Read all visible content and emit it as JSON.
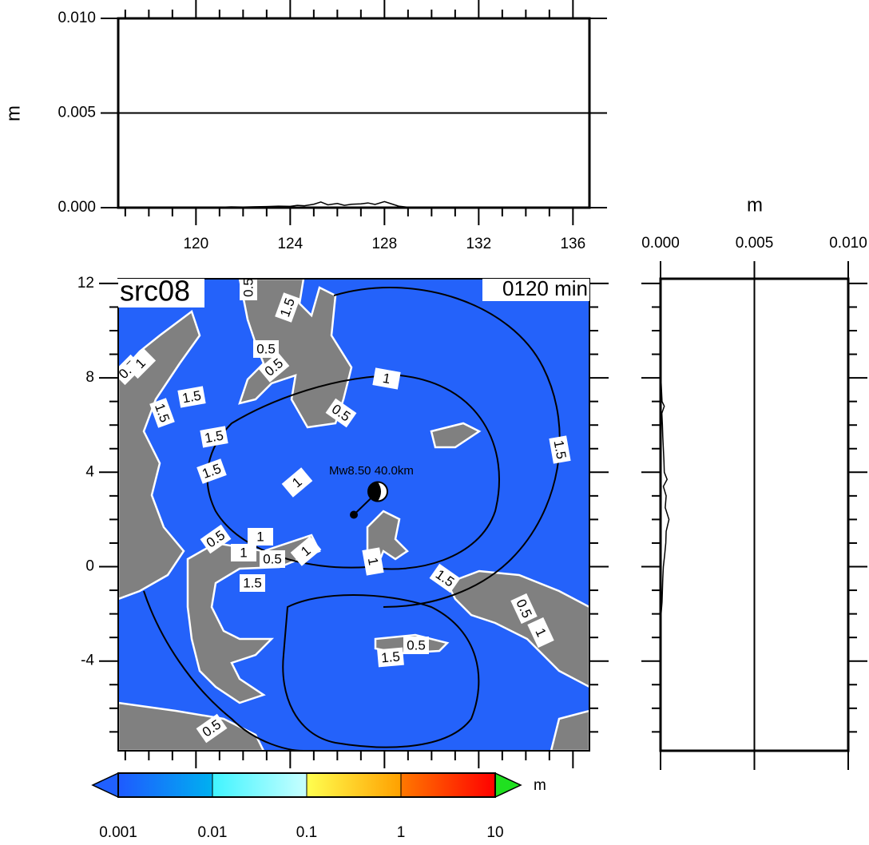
{
  "chart_data": [
    {
      "type": "line",
      "ylabel": "m",
      "xlim": [
        116.7,
        136.7
      ],
      "xticks": [
        120,
        124,
        128,
        132,
        136
      ],
      "xminorticks": [
        117,
        118,
        119,
        121,
        122,
        123,
        125,
        126,
        127,
        129,
        130,
        131,
        133,
        134,
        135
      ],
      "ylim": [
        0,
        0.01
      ],
      "yticks": [
        {
          "value": 0,
          "label": "0.000"
        },
        {
          "value": 0.005,
          "label": "0.005"
        },
        {
          "value": 0.01,
          "label": "0.010"
        }
      ],
      "grid": true,
      "series": [
        {
          "color": "#000000",
          "x": [
            117.5,
            118,
            118.5,
            119,
            119.5,
            120,
            120.5,
            121,
            121.5,
            122,
            122.5,
            123,
            123.5,
            124,
            124.3,
            124.6,
            125,
            125.3,
            125.6,
            126,
            126.3,
            126.6,
            127,
            127.3,
            127.6,
            128,
            128.3,
            128.6,
            129
          ],
          "values": [
            1e-05,
            2e-05,
            1e-05,
            3e-05,
            2e-05,
            2e-05,
            3e-05,
            2e-05,
            4e-05,
            3e-05,
            5e-05,
            6e-05,
            8e-05,
            7e-05,
            0.00012,
            0.0001,
            0.00018,
            0.0003,
            0.00015,
            0.00022,
            0.00012,
            0.00018,
            0.0002,
            0.00025,
            0.00017,
            0.00032,
            0.0002,
            8e-05,
            2e-05
          ]
        }
      ]
    },
    {
      "type": "map",
      "title": "src08",
      "subtitle": "0120 min",
      "xlim": [
        116.7,
        136.7
      ],
      "xminorticks": [
        117,
        118,
        119,
        120,
        121,
        122,
        123,
        124,
        125,
        126,
        127,
        128,
        129,
        130,
        131,
        132,
        133,
        134,
        135,
        136
      ],
      "ylim": [
        -7.8,
        12.2
      ],
      "yticks": [
        12,
        8,
        4,
        0,
        -4
      ],
      "yminorticks": [
        11,
        10,
        9,
        7,
        6,
        5,
        3,
        2,
        1,
        -1,
        -2,
        -3,
        -5,
        -6,
        -7
      ],
      "sea_color": "#2462fa",
      "land_color": "#808080",
      "annotation": "Mw8.50 40.0km",
      "epicenter": [
        126.7,
        2.2
      ],
      "contour_labels": [
        "0.5",
        "1.5",
        "0.5",
        "0.5",
        "0.5",
        "1",
        "1.5",
        "1.5",
        "0.5",
        "1",
        "1.5",
        "1.5",
        "1",
        "1.5",
        "0.5",
        "1",
        "1",
        "0.5",
        "1",
        "1",
        "1.5",
        "1.5",
        "0.5",
        "1",
        "1.5",
        "0.5",
        "0.5"
      ],
      "colorbar": {
        "unit": "m",
        "log": true,
        "ticks": [
          0.001,
          0.01,
          0.1,
          1,
          10
        ],
        "colors": [
          [
            "#1e5aff",
            "#00b0f0"
          ],
          [
            "#40f4ff",
            "#c8ffff"
          ],
          [
            "#ffff50",
            "#ffa000"
          ],
          [
            "#ff7800",
            "#ff0000"
          ]
        ],
        "under_color": "#2060ff",
        "over_color": "#20e020"
      }
    },
    {
      "type": "line",
      "orientation": "horizontal",
      "xlabel": "m",
      "xlim": [
        0,
        0.01
      ],
      "xticks": [
        {
          "value": 0,
          "label": "0.000"
        },
        {
          "value": 0.005,
          "label": "0.005"
        },
        {
          "value": 0.01,
          "label": "0.010"
        }
      ],
      "ylim": [
        -7.8,
        12.2
      ],
      "yticks": [
        12,
        11,
        10,
        9,
        8,
        7,
        6,
        5,
        4,
        3,
        2,
        1,
        0,
        -1,
        -2,
        -3,
        -4,
        -5,
        -6,
        -7
      ],
      "grid": true,
      "series": [
        {
          "color": "#000000",
          "y": [
            8,
            7.5,
            7,
            6.8,
            6.5,
            6,
            5.5,
            5,
            4.5,
            4,
            3.7,
            3.4,
            3,
            2.5,
            2,
            1.5,
            1,
            0.5,
            0,
            -0.5,
            -1,
            -1.5,
            -2
          ],
          "values": [
            2e-05,
            5e-05,
            8e-05,
            0.0002,
            7e-05,
            0.0001,
            0.00012,
            0.00015,
            0.00018,
            0.0002,
            0.00035,
            0.00015,
            0.0003,
            0.00025,
            0.00045,
            0.0003,
            0.00028,
            0.00022,
            0.00015,
            0.00012,
            0.0001,
            8e-05,
            3e-05
          ]
        }
      ]
    }
  ]
}
